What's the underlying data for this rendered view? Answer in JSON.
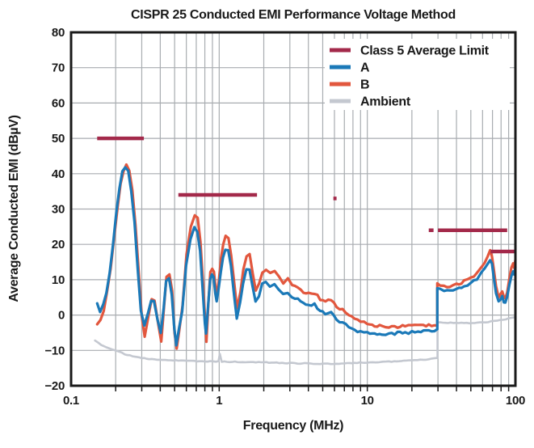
{
  "chart_data": {
    "type": "line",
    "title": "CISPR 25 Conducted EMI Performance Voltage Method",
    "xlabel": "Frequency (MHz)",
    "ylabel": "Average Conducted EMI (dBµV)",
    "x_scale": "log",
    "xlim": [
      0.1,
      100
    ],
    "ylim": [
      -20,
      80
    ],
    "x_ticks": [
      0.1,
      1,
      10,
      100
    ],
    "x_tick_labels": [
      "0.1",
      "1",
      "10",
      "100"
    ],
    "y_ticks": [
      80,
      70,
      60,
      50,
      40,
      30,
      20,
      10,
      0,
      -10,
      -20
    ],
    "y_tick_labels": [
      "80",
      "70",
      "60",
      "50",
      "40",
      "30",
      "20",
      "10",
      "0",
      "−10",
      "−20"
    ],
    "x_gridlines": [
      0.2,
      0.3,
      0.4,
      0.5,
      0.6,
      0.7,
      0.8,
      0.9,
      1,
      2,
      3,
      4,
      5,
      6,
      7,
      8,
      9,
      10,
      20,
      30,
      40,
      50,
      60,
      70,
      80,
      90
    ],
    "y_gridlines": [
      -10,
      0,
      10,
      20,
      30,
      40,
      50,
      60,
      70
    ],
    "grid": true,
    "legend_position": "top-right",
    "colors": {
      "background": "#ffffff",
      "grid": "#a8acb0",
      "frame": "#1a1a1a",
      "text": "#1a1a1a",
      "limit": "#a3294a",
      "series_a": "#1b79b8",
      "series_b": "#e2573e",
      "ambient": "#c4c8d0"
    },
    "series": [
      {
        "name": "Class 5 Average Limit",
        "color": "#a3294a",
        "style": "segments",
        "segments": [
          [
            0.15,
            0.31,
            50
          ],
          [
            0.53,
            1.8,
            34
          ],
          [
            5.9,
            6.2,
            33
          ],
          [
            26,
            28,
            24
          ],
          [
            30,
            88,
            24
          ],
          [
            68,
            100,
            18
          ]
        ]
      },
      {
        "name": "A",
        "color": "#1b79b8",
        "style": "line",
        "points": [
          [
            0.15,
            3.3
          ],
          [
            0.157,
            0.6
          ],
          [
            0.165,
            3.2
          ],
          [
            0.173,
            6
          ],
          [
            0.182,
            12
          ],
          [
            0.192,
            20
          ],
          [
            0.202,
            29
          ],
          [
            0.212,
            36
          ],
          [
            0.222,
            40.5
          ],
          [
            0.232,
            41.8
          ],
          [
            0.243,
            40.5
          ],
          [
            0.255,
            35
          ],
          [
            0.268,
            26
          ],
          [
            0.282,
            13
          ],
          [
            0.296,
            1
          ],
          [
            0.312,
            -3.2
          ],
          [
            0.33,
            0.8
          ],
          [
            0.347,
            4.2
          ],
          [
            0.363,
            3.6
          ],
          [
            0.383,
            -1.5
          ],
          [
            0.403,
            -5.4
          ],
          [
            0.422,
            2
          ],
          [
            0.438,
            9.6
          ],
          [
            0.458,
            10.6
          ],
          [
            0.478,
            6
          ],
          [
            0.497,
            -4
          ],
          [
            0.513,
            -8.6
          ],
          [
            0.535,
            -4
          ],
          [
            0.562,
            1
          ],
          [
            0.598,
            14
          ],
          [
            0.64,
            21.5
          ],
          [
            0.68,
            24.6
          ],
          [
            0.712,
            23.8
          ],
          [
            0.743,
            18
          ],
          [
            0.772,
            8
          ],
          [
            0.8,
            -2
          ],
          [
            0.815,
            -5.2
          ],
          [
            0.843,
            3
          ],
          [
            0.868,
            10.2
          ],
          [
            0.893,
            11.6
          ],
          [
            0.917,
            10.6
          ],
          [
            0.941,
            6
          ],
          [
            0.962,
            3.6
          ],
          [
            0.992,
            7.5
          ],
          [
            1.025,
            12.5
          ],
          [
            1.06,
            16.3
          ],
          [
            1.1,
            18.4
          ],
          [
            1.15,
            18.0
          ],
          [
            1.2,
            14
          ],
          [
            1.26,
            6
          ],
          [
            1.315,
            -0.6
          ],
          [
            1.385,
            3.5
          ],
          [
            1.45,
            9.2
          ],
          [
            1.525,
            12.6
          ],
          [
            1.6,
            12.9
          ],
          [
            1.68,
            8.2
          ],
          [
            1.76,
            3.6
          ],
          [
            1.855,
            5.2
          ],
          [
            1.95,
            8.6
          ],
          [
            2.06,
            9.1
          ],
          [
            2.2,
            8.4
          ],
          [
            2.36,
            9.0
          ],
          [
            2.52,
            7.0
          ],
          [
            2.7,
            5.6
          ],
          [
            2.9,
            6.6
          ],
          [
            3.1,
            5.1
          ],
          [
            3.4,
            4.6
          ],
          [
            3.7,
            3.1
          ],
          [
            4.0,
            2.7
          ],
          [
            4.4,
            2.9
          ],
          [
            4.8,
            1.1
          ],
          [
            5.2,
            0.6
          ],
          [
            5.7,
            1.1
          ],
          [
            6.2,
            -1.2
          ],
          [
            6.8,
            -2.2
          ],
          [
            7.5,
            -3.4
          ],
          [
            8.2,
            -4.3
          ],
          [
            9.0,
            -4.7
          ],
          [
            10,
            -5.0
          ],
          [
            11.2,
            -5.3
          ],
          [
            12.6,
            -5.4
          ],
          [
            14,
            -5.3
          ],
          [
            16,
            -5.1
          ],
          [
            18,
            -5.0
          ],
          [
            20,
            -4.9
          ],
          [
            23,
            -4.7
          ],
          [
            26,
            -4.5
          ],
          [
            29.7,
            -4.3
          ],
          [
            29.7,
            7.6
          ],
          [
            31,
            7.4
          ],
          [
            33,
            6.9
          ],
          [
            36,
            6.8
          ],
          [
            40,
            7.2
          ],
          [
            45,
            7.9
          ],
          [
            50,
            8.8
          ],
          [
            55,
            10.2
          ],
          [
            59,
            11.8
          ],
          [
            62,
            13.2
          ],
          [
            65,
            14.8
          ],
          [
            67.5,
            15.6
          ],
          [
            69.5,
            14.5
          ],
          [
            71.5,
            10.5
          ],
          [
            74,
            6
          ],
          [
            77,
            3.6
          ],
          [
            79.5,
            4.6
          ],
          [
            81.5,
            5.4
          ],
          [
            83.5,
            3.9
          ],
          [
            85.5,
            3.3
          ],
          [
            88,
            5
          ],
          [
            91,
            8.8
          ],
          [
            94,
            11.4
          ],
          [
            96.5,
            12.4
          ],
          [
            98,
            11.6
          ],
          [
            100,
            13.6
          ]
        ]
      },
      {
        "name": "B",
        "color": "#e2573e",
        "style": "line",
        "points": [
          [
            0.15,
            -2.6
          ],
          [
            0.158,
            -1.6
          ],
          [
            0.166,
            1.4
          ],
          [
            0.175,
            6.5
          ],
          [
            0.185,
            13.5
          ],
          [
            0.195,
            22
          ],
          [
            0.206,
            30.5
          ],
          [
            0.216,
            37
          ],
          [
            0.226,
            41
          ],
          [
            0.236,
            42.3
          ],
          [
            0.247,
            41
          ],
          [
            0.259,
            35.5
          ],
          [
            0.272,
            25.5
          ],
          [
            0.286,
            12
          ],
          [
            0.3,
            0
          ],
          [
            0.314,
            -6.3
          ],
          [
            0.333,
            0
          ],
          [
            0.35,
            4.6
          ],
          [
            0.366,
            4.0
          ],
          [
            0.386,
            -2
          ],
          [
            0.406,
            -7.2
          ],
          [
            0.424,
            2.5
          ],
          [
            0.441,
            10.8
          ],
          [
            0.461,
            11.8
          ],
          [
            0.481,
            6.6
          ],
          [
            0.5,
            -5
          ],
          [
            0.516,
            -9.6
          ],
          [
            0.538,
            -4.5
          ],
          [
            0.566,
            3
          ],
          [
            0.602,
            17
          ],
          [
            0.643,
            25
          ],
          [
            0.684,
            28.2
          ],
          [
            0.716,
            27.2
          ],
          [
            0.747,
            21
          ],
          [
            0.776,
            10
          ],
          [
            0.804,
            -2
          ],
          [
            0.82,
            -7.9
          ],
          [
            0.847,
            4
          ],
          [
            0.872,
            12
          ],
          [
            0.897,
            13.2
          ],
          [
            0.921,
            12.1
          ],
          [
            0.945,
            8
          ],
          [
            0.966,
            6
          ],
          [
            0.996,
            10
          ],
          [
            1.03,
            16
          ],
          [
            1.065,
            20
          ],
          [
            1.105,
            22.3
          ],
          [
            1.155,
            21.8
          ],
          [
            1.205,
            17
          ],
          [
            1.265,
            9
          ],
          [
            1.32,
            2
          ],
          [
            1.39,
            6.5
          ],
          [
            1.455,
            13
          ],
          [
            1.53,
            16.6
          ],
          [
            1.605,
            17
          ],
          [
            1.685,
            12
          ],
          [
            1.765,
            7
          ],
          [
            1.86,
            9
          ],
          [
            1.955,
            12
          ],
          [
            2.07,
            12.9
          ],
          [
            2.21,
            12.3
          ],
          [
            2.37,
            12.8
          ],
          [
            2.53,
            10.6
          ],
          [
            2.71,
            9.1
          ],
          [
            2.91,
            10.1
          ],
          [
            3.11,
            8.6
          ],
          [
            3.41,
            8.1
          ],
          [
            3.71,
            6.6
          ],
          [
            4.01,
            6.1
          ],
          [
            4.41,
            6.3
          ],
          [
            4.81,
            4.6
          ],
          [
            5.21,
            4.1
          ],
          [
            5.71,
            4.4
          ],
          [
            6.21,
            2.4
          ],
          [
            6.81,
            1.4
          ],
          [
            7.51,
            0
          ],
          [
            8.21,
            -1
          ],
          [
            9.01,
            -1.9
          ],
          [
            10,
            -2.3
          ],
          [
            11.2,
            -2.9
          ],
          [
            12.6,
            -3.3
          ],
          [
            14,
            -3.4
          ],
          [
            16,
            -3.3
          ],
          [
            18,
            -3.2
          ],
          [
            20,
            -3.1
          ],
          [
            23,
            -3.0
          ],
          [
            26,
            -2.9
          ],
          [
            29.7,
            -2.7
          ],
          [
            29.7,
            8.9
          ],
          [
            31,
            8.7
          ],
          [
            33,
            8.3
          ],
          [
            36,
            8.2
          ],
          [
            40,
            8.7
          ],
          [
            45,
            9.5
          ],
          [
            50,
            10.5
          ],
          [
            55,
            11.9
          ],
          [
            59,
            13.5
          ],
          [
            62,
            15
          ],
          [
            65,
            16.8
          ],
          [
            67.5,
            18.4
          ],
          [
            69.5,
            16.8
          ],
          [
            71.5,
            12.5
          ],
          [
            74,
            7.8
          ],
          [
            77,
            5.3
          ],
          [
            79.5,
            6.3
          ],
          [
            81.5,
            7
          ],
          [
            83.5,
            5.5
          ],
          [
            85.5,
            5
          ],
          [
            88,
            6.6
          ],
          [
            91,
            10.6
          ],
          [
            94,
            13.4
          ],
          [
            96.5,
            14.6
          ],
          [
            98,
            13.6
          ],
          [
            100,
            15.6
          ]
        ]
      },
      {
        "name": "Ambient",
        "color": "#c4c8d0",
        "style": "line",
        "points": [
          [
            0.145,
            -7.2
          ],
          [
            0.16,
            -8.4
          ],
          [
            0.18,
            -9.4
          ],
          [
            0.2,
            -10.1
          ],
          [
            0.23,
            -11.0
          ],
          [
            0.26,
            -11.7
          ],
          [
            0.3,
            -12.1
          ],
          [
            0.35,
            -12.5
          ],
          [
            0.45,
            -12.8
          ],
          [
            0.6,
            -13.0
          ],
          [
            0.8,
            -13.1
          ],
          [
            0.99,
            -13.1
          ],
          [
            1.01,
            -10.9
          ],
          [
            1.04,
            -13.2
          ],
          [
            1.5,
            -13.3
          ],
          [
            2.0,
            -13.4
          ],
          [
            3.0,
            -13.6
          ],
          [
            5.0,
            -13.8
          ],
          [
            7.0,
            -13.7
          ],
          [
            10,
            -13.4
          ],
          [
            14,
            -13.2
          ],
          [
            20,
            -12.8
          ],
          [
            26,
            -12.5
          ],
          [
            29.8,
            -12.2
          ],
          [
            29.8,
            -2.0
          ],
          [
            35,
            -2.2
          ],
          [
            45,
            -2.3
          ],
          [
            60,
            -2.1
          ],
          [
            75,
            -1.6
          ],
          [
            90,
            -1.0
          ],
          [
            100,
            -0.6
          ]
        ]
      }
    ]
  }
}
